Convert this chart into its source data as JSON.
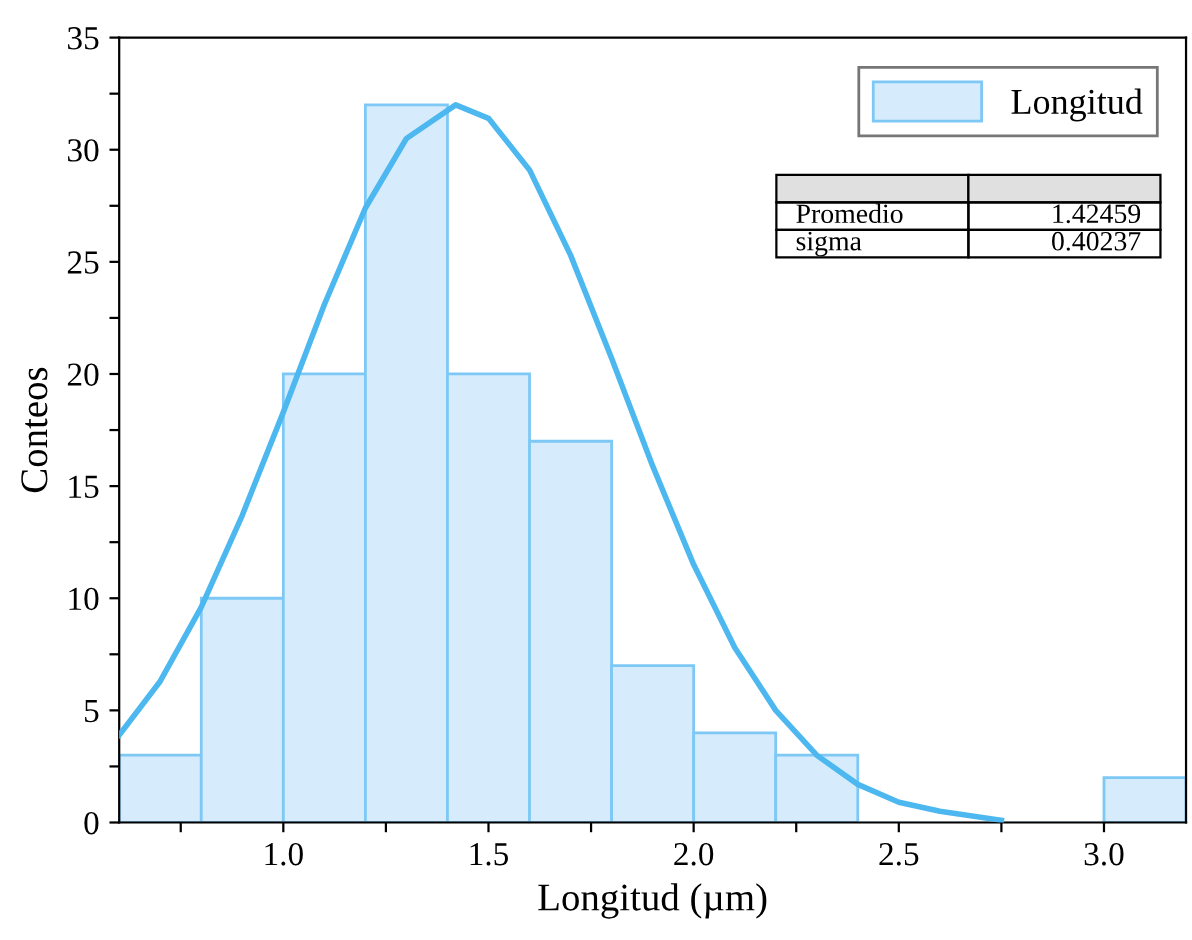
{
  "chart_data": {
    "type": "histogram",
    "xlabel": "Longitud (µm)",
    "ylabel": "Conteos",
    "series": [
      {
        "name": "Longitud",
        "color": "#d6ebfc",
        "bins": [
          0.6,
          0.8,
          1.0,
          1.2,
          1.4,
          1.6,
          1.8,
          2.0,
          2.2,
          2.4,
          2.6,
          2.8,
          3.0,
          3.2
        ],
        "values": [
          3,
          10,
          20,
          32,
          20,
          17,
          7,
          4,
          3,
          0,
          0,
          0,
          2
        ]
      },
      {
        "type": "line",
        "color": "#4db8f0",
        "x": [
          0.6,
          0.7,
          0.8,
          0.9,
          1.0,
          1.1,
          1.2,
          1.3,
          1.42,
          1.5,
          1.6,
          1.7,
          1.8,
          1.9,
          2.0,
          2.1,
          2.2,
          2.3,
          2.4,
          2.5,
          2.6,
          2.75
        ],
        "values": [
          3.9,
          6.3,
          9.6,
          13.7,
          18.3,
          23.1,
          27.4,
          30.5,
          32,
          31.4,
          29.1,
          25.3,
          20.7,
          15.9,
          11.5,
          7.8,
          5.0,
          3.0,
          1.7,
          0.9,
          0.5,
          0.1
        ]
      }
    ],
    "annotations": [
      "Promedio",
      "1.42459",
      "sigma",
      "0.40237"
    ],
    "xlim": [
      0.6,
      3.2
    ],
    "xticks": [
      {
        "value": 0.75,
        "label": null
      },
      {
        "value": 1,
        "label": "1.0"
      },
      {
        "value": 1.25,
        "label": null
      },
      1.5,
      {
        "value": 1.75,
        "label": null
      },
      {
        "value": 2,
        "label": "2.0"
      },
      {
        "value": 2.25,
        "label": null
      },
      2.5,
      {
        "value": 2.75,
        "label": null
      },
      {
        "value": 3,
        "label": "3.0"
      }
    ],
    "ylim": [
      0,
      35
    ],
    "yticks": [
      0,
      {
        "value": 2.5,
        "label": null
      },
      5,
      {
        "value": 7.5,
        "label": null
      },
      10,
      {
        "value": 12.5,
        "label": null
      },
      15,
      {
        "value": 17.5,
        "label": null
      },
      20,
      {
        "value": 22.5,
        "label": null
      },
      25,
      {
        "value": 27.5,
        "label": null
      },
      30,
      {
        "value": 32.5,
        "label": null
      },
      35
    ],
    "grid": false,
    "legend": "top right"
  }
}
